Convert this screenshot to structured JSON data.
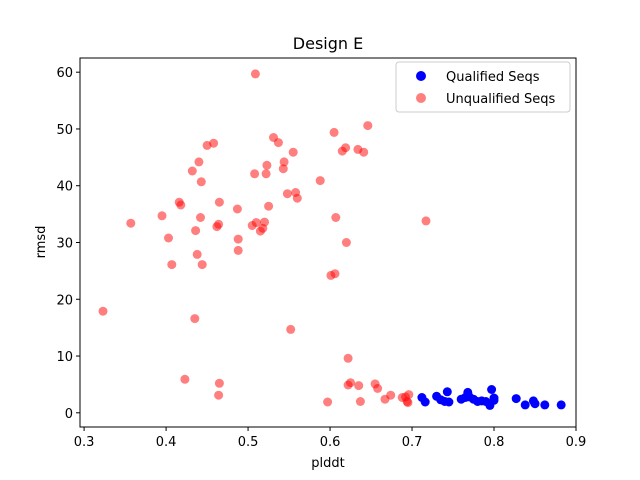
{
  "chart_data": {
    "type": "scatter",
    "title": "Design E",
    "xlabel": "plddt",
    "ylabel": "rmsd",
    "xlim": [
      0.295,
      0.9
    ],
    "ylim": [
      -2.5,
      62.5
    ],
    "xticks": [
      0.3,
      0.4,
      0.5,
      0.6,
      0.7,
      0.8,
      0.9
    ],
    "yticks": [
      0,
      10,
      20,
      30,
      40,
      50,
      60
    ],
    "xtick_labels": [
      "0.3",
      "0.4",
      "0.5",
      "0.6",
      "0.7",
      "0.8",
      "0.9"
    ],
    "ytick_labels": [
      "0",
      "10",
      "20",
      "30",
      "40",
      "50",
      "60"
    ],
    "grid": false,
    "legend_position": "top-right",
    "series": [
      {
        "name": "Unqualified Seqs",
        "color": "#ff0000",
        "alpha": 0.5,
        "x": [
          0.323,
          0.357,
          0.395,
          0.403,
          0.407,
          0.416,
          0.418,
          0.423,
          0.432,
          0.435,
          0.436,
          0.438,
          0.44,
          0.442,
          0.443,
          0.444,
          0.45,
          0.458,
          0.462,
          0.464,
          0.465,
          0.465,
          0.464,
          0.487,
          0.488,
          0.488,
          0.505,
          0.508,
          0.509,
          0.51,
          0.515,
          0.518,
          0.52,
          0.522,
          0.523,
          0.525,
          0.531,
          0.537,
          0.543,
          0.544,
          0.548,
          0.552,
          0.555,
          0.558,
          0.56,
          0.588,
          0.597,
          0.601,
          0.605,
          0.606,
          0.607,
          0.615,
          0.619,
          0.62,
          0.622,
          0.622,
          0.625,
          0.634,
          0.635,
          0.637,
          0.641,
          0.646,
          0.655,
          0.658,
          0.667,
          0.674,
          0.688,
          0.692,
          0.694,
          0.695,
          0.696,
          0.717
        ],
        "y": [
          17.9,
          33.4,
          34.7,
          30.8,
          26.1,
          37.1,
          36.6,
          5.9,
          42.6,
          16.6,
          32.1,
          27.9,
          44.2,
          34.4,
          40.7,
          26.1,
          47.1,
          47.5,
          32.8,
          33.2,
          37.1,
          5.2,
          3.1,
          35.9,
          30.6,
          28.6,
          33.0,
          42.1,
          59.7,
          33.5,
          32.0,
          32.5,
          33.6,
          42.1,
          43.6,
          36.4,
          48.5,
          47.6,
          43.0,
          44.2,
          38.6,
          14.7,
          45.9,
          38.8,
          37.8,
          40.9,
          1.9,
          24.2,
          49.4,
          24.5,
          34.4,
          46.1,
          46.7,
          30.0,
          9.6,
          4.9,
          5.3,
          46.4,
          4.8,
          2.0,
          45.9,
          50.6,
          5.1,
          4.3,
          2.4,
          3.1,
          2.7,
          2.8,
          2.0,
          1.8,
          3.2,
          33.8
        ]
      },
      {
        "name": "Qualified Seqs",
        "color": "#0000ff",
        "alpha": 1,
        "x": [
          0.712,
          0.716,
          0.73,
          0.735,
          0.74,
          0.743,
          0.745,
          0.76,
          0.765,
          0.768,
          0.77,
          0.775,
          0.78,
          0.785,
          0.79,
          0.795,
          0.797,
          0.8,
          0.8,
          0.827,
          0.838,
          0.848,
          0.85,
          0.862,
          0.882
        ],
        "y": [
          2.7,
          1.9,
          2.9,
          2.3,
          2.0,
          3.7,
          1.9,
          2.4,
          2.7,
          3.6,
          2.8,
          2.4,
          2.0,
          2.1,
          2.0,
          1.3,
          4.1,
          2.2,
          2.6,
          2.5,
          1.4,
          2.1,
          1.6,
          1.4,
          1.4
        ]
      }
    ],
    "legend": [
      {
        "label": "Qualified Seqs",
        "color": "#0000ff",
        "alpha": 1
      },
      {
        "label": "Unqualified Seqs",
        "color": "#ff0000",
        "alpha": 0.5
      }
    ]
  }
}
